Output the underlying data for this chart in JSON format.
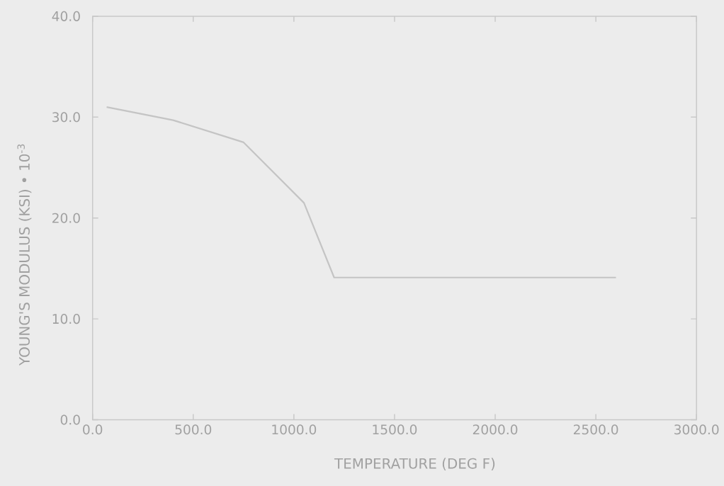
{
  "chart_data": {
    "type": "line",
    "xlabel": "TEMPERATURE (DEG F)",
    "ylabel": "YOUNG'S MODULUS (KSI) • 10$^{-3}$",
    "x": [
      70,
      400,
      750,
      1050,
      1200,
      2600
    ],
    "values": [
      31.0,
      29.7,
      27.5,
      21.5,
      14.1,
      14.1
    ],
    "color": "#c4c4c4",
    "xlim": [
      0,
      3000
    ],
    "ylim": [
      0,
      40
    ],
    "xticks": [
      {
        "value": 0,
        "label": "0.0"
      },
      {
        "value": 500,
        "label": "500.0"
      },
      {
        "value": 1000,
        "label": "1000.0"
      },
      {
        "value": 1500,
        "label": "1500.0"
      },
      {
        "value": 2000,
        "label": "2000.0"
      },
      {
        "value": 2500,
        "label": "2500.0"
      },
      {
        "value": 3000,
        "label": "3000.0"
      }
    ],
    "yticks": [
      {
        "value": 0,
        "label": "0.0"
      },
      {
        "value": 10,
        "label": "10.0"
      },
      {
        "value": 20,
        "label": "20.0"
      },
      {
        "value": 30,
        "label": "30.0"
      },
      {
        "value": 40,
        "label": "40.0"
      }
    ],
    "grid": false,
    "marker": "none",
    "line_style": "solid"
  }
}
